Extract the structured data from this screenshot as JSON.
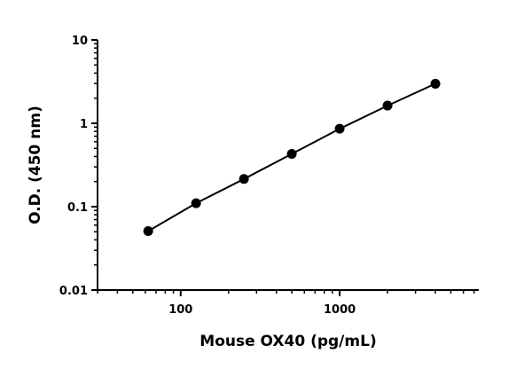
{
  "chart_data": {
    "type": "line",
    "title": "",
    "xlabel": "Mouse OX40 (pg/mL)",
    "ylabel": "O.D. (450 nm)",
    "xscale": "log",
    "yscale": "log",
    "xlim": [
      30,
      7500
    ],
    "ylim": [
      0.01,
      10
    ],
    "x_ticks": [
      100,
      1000
    ],
    "x_tick_labels": [
      "100",
      "1000"
    ],
    "y_ticks": [
      0.01,
      0.1,
      1,
      10
    ],
    "y_tick_labels": [
      "0.01",
      "0.1",
      "1",
      "10"
    ],
    "grid": false,
    "legend": "none",
    "series": [
      {
        "x": [
          62.5,
          125,
          250,
          500,
          1000,
          2000,
          4000
        ],
        "y": [
          0.051,
          0.11,
          0.215,
          0.43,
          0.86,
          1.63,
          2.98
        ]
      }
    ],
    "colors": {
      "line": "#000000",
      "marker": "#000000"
    }
  }
}
